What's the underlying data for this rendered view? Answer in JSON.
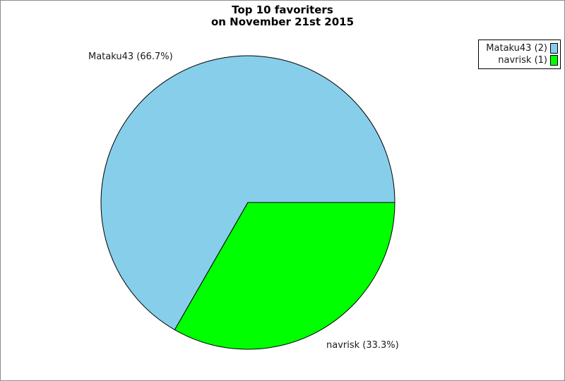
{
  "title": {
    "line1": "Top 10 favoriters",
    "line2": "on November 21st 2015"
  },
  "chart_data": {
    "type": "pie",
    "title": "Top 10 favoriters on November 21st 2015",
    "legend_position": "top-right",
    "start_angle_deg": 0,
    "direction": "counterclockwise",
    "slices": [
      {
        "label": "Mataku43",
        "count": 2,
        "percent": 66.7,
        "color": "#87CEEB",
        "display_label": "Mataku43 (66.7%)",
        "legend_label": "Mataku43 (2)"
      },
      {
        "label": "navrisk",
        "count": 1,
        "percent": 33.3,
        "color": "#00FF00",
        "display_label": "navrisk (33.3%)",
        "legend_label": "navrisk (1)"
      }
    ]
  },
  "colors": {
    "outline": "#000000",
    "page_border": "#8c8c8c",
    "background": "#ffffff"
  }
}
